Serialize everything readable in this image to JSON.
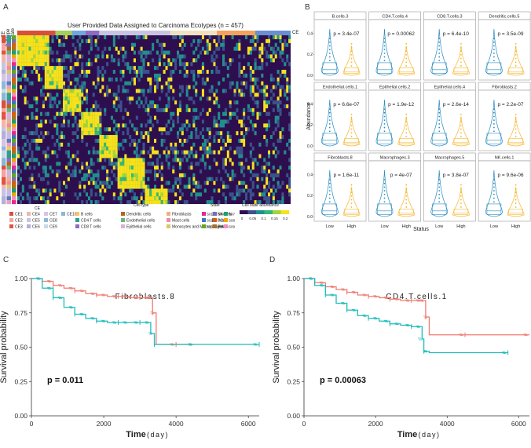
{
  "panel_letters": [
    "A",
    "B",
    "C",
    "D"
  ],
  "chart_data": [
    {
      "panel": "A",
      "type": "heatmap",
      "title": "User Provided Data Assigned to Carcinoma Ecotypes (n = 457)",
      "row_annotation_labels": [
        "CE",
        "Cell type",
        "State"
      ],
      "right_label": "CE",
      "legend": {
        "ce_title": "CE",
        "ce": [
          "CE1",
          "CE2",
          "CE3",
          "CE4",
          "CE5",
          "CE6",
          "CE7",
          "CE8",
          "CE9",
          "CE10"
        ],
        "ce_colors": [
          "#d94f3d",
          "#f4a3a0",
          "#e1553f",
          "#f0b7a8",
          "#c9c3e3",
          "#b4afd6",
          "#d8c3e4",
          "#8fb8d8",
          "#c8d9e8",
          "#8ab6d6"
        ],
        "celltype_title": "Cell type",
        "celltype": [
          "B cells",
          "CD4 T cells",
          "CD8 T cells",
          "Dendritic cells",
          "Endothelial cells",
          "Epithelial cells",
          "Fibroblasts",
          "Mast cells",
          "Monocytes and Macrophages",
          "NK cells",
          "PCs",
          "PMNs"
        ],
        "celltype_colors": [
          "#f6c36b",
          "#2e9e8f",
          "#8e6bbf",
          "#b5651d",
          "#6ab27b",
          "#d6b2d9",
          "#e8b28a",
          "#f08ba0",
          "#d9c76a",
          "#c8b9e6",
          "#5a7bbf",
          "#e6a0c0"
        ],
        "state_title": "State",
        "state": [
          "S01",
          "S02",
          "S03",
          "S04",
          "S05",
          "S06",
          "S07",
          "S08",
          "S09"
        ],
        "state_colors": [
          "#e7298a",
          "#3a78b8",
          "#66a61e",
          "#7570b3",
          "#d95f02",
          "#a6761d",
          "#1b9e77",
          "#e6ab02",
          "#f28ec0"
        ],
        "abundance_title": "Cell state abundance",
        "abundance_ticks": [
          "0",
          "0.05",
          "0.1",
          "0.15",
          "0.2"
        ]
      },
      "ce_bar_colors": [
        "#d94f3d",
        "#a5ce5a",
        "#6fa8dc",
        "#8e6bbf",
        "#c9c3e3",
        "#f0e2c0",
        "#f2a25c",
        "#6a8fd1"
      ],
      "ce_bar_fractions": [
        0.14,
        0.06,
        0.05,
        0.05,
        0.26,
        0.17,
        0.14,
        0.13
      ]
    },
    {
      "panel": "B",
      "type": "violin-boxplot",
      "xlabel": "Status",
      "ylabel": "Abundance",
      "categories": [
        "Low",
        "High"
      ],
      "series_colors": {
        "Low": "#2b8cbe",
        "High": "#f5b731"
      },
      "yticks": [
        "0.0",
        "0.2",
        "0.4"
      ],
      "ylim": [
        0,
        0.5
      ],
      "facets": [
        {
          "name": "B.cells.3",
          "p": "p = 3.4e-07"
        },
        {
          "name": "CD4.T.cells.4",
          "p": "p = 0.00062"
        },
        {
          "name": "CD8.T.cells.3",
          "p": "p = 6.4e-10"
        },
        {
          "name": "Dendritic.cells.5",
          "p": "p = 3.5e-09"
        },
        {
          "name": "Endothelial.cells.1",
          "p": "p = 6.6e-07"
        },
        {
          "name": "Epithelial.cells.2",
          "p": "p = 1.9e-12"
        },
        {
          "name": "Epithelial.cells.4",
          "p": "p = 2.6e-14"
        },
        {
          "name": "Fibroblasts.2",
          "p": "p = 2.2e-07"
        },
        {
          "name": "Fibroblasts.8",
          "p": "p = 1.6e-11"
        },
        {
          "name": "Macrophages.3",
          "p": "p = 4e-07"
        },
        {
          "name": "Macrophages.5",
          "p": "p = 3.8e-07"
        },
        {
          "name": "NK.cells.1",
          "p": "p = 9.6e-06"
        }
      ]
    },
    {
      "panel": "C",
      "type": "line",
      "title": "Fibroblasts.8",
      "xlabel_main": "Time",
      "xlabel_unit": "(day)",
      "ylabel": "Survival probability",
      "pvalue": "p = 0.011",
      "xlim": [
        0,
        6300
      ],
      "ylim": [
        0,
        1
      ],
      "xticks": [
        0,
        2000,
        4000,
        6000
      ],
      "yticks": [
        "0.00",
        "0.25",
        "0.50",
        "0.75",
        "1.00"
      ],
      "series": [
        {
          "color": "#f07c72",
          "x": [
            0,
            300,
            600,
            900,
            1200,
            1500,
            1800,
            2100,
            2400,
            2700,
            3000,
            3300,
            3350,
            3450,
            4000,
            4500
          ],
          "y": [
            1.0,
            0.98,
            0.95,
            0.93,
            0.91,
            0.89,
            0.88,
            0.87,
            0.87,
            0.86,
            0.86,
            0.86,
            0.75,
            0.52,
            0.52,
            0.52
          ]
        },
        {
          "color": "#1fbcbc",
          "x": [
            0,
            300,
            600,
            900,
            1200,
            1500,
            1800,
            2100,
            2400,
            2700,
            3000,
            3300,
            3400,
            4500,
            6300
          ],
          "y": [
            1.0,
            0.93,
            0.86,
            0.79,
            0.74,
            0.71,
            0.69,
            0.68,
            0.68,
            0.68,
            0.68,
            0.6,
            0.52,
            0.52,
            0.52
          ]
        }
      ]
    },
    {
      "panel": "D",
      "type": "line",
      "title": "CD4.T.cells.1",
      "xlabel_main": "Time",
      "xlabel_unit": "(day)",
      "ylabel": "Survival probability",
      "pvalue": "p = 0.00063",
      "xlim": [
        0,
        6300
      ],
      "ylim": [
        0,
        1
      ],
      "xticks": [
        0,
        2000,
        4000,
        6000
      ],
      "yticks": [
        "0.00",
        "0.25",
        "0.50",
        "0.75",
        "1.00"
      ],
      "series": [
        {
          "color": "#f07c72",
          "x": [
            0,
            300,
            600,
            900,
            1200,
            1500,
            1800,
            2100,
            2400,
            2700,
            3000,
            3300,
            3400,
            3500,
            4500,
            6300
          ],
          "y": [
            1.0,
            0.97,
            0.94,
            0.92,
            0.9,
            0.88,
            0.87,
            0.86,
            0.85,
            0.84,
            0.84,
            0.84,
            0.72,
            0.59,
            0.59,
            0.59
          ]
        },
        {
          "color": "#1fbcbc",
          "x": [
            0,
            300,
            600,
            900,
            1200,
            1500,
            1800,
            2100,
            2400,
            2700,
            3000,
            3300,
            3350,
            3500,
            5700
          ],
          "y": [
            1.0,
            0.95,
            0.88,
            0.82,
            0.77,
            0.73,
            0.71,
            0.69,
            0.67,
            0.66,
            0.65,
            0.56,
            0.47,
            0.46,
            0.46
          ]
        }
      ]
    }
  ]
}
